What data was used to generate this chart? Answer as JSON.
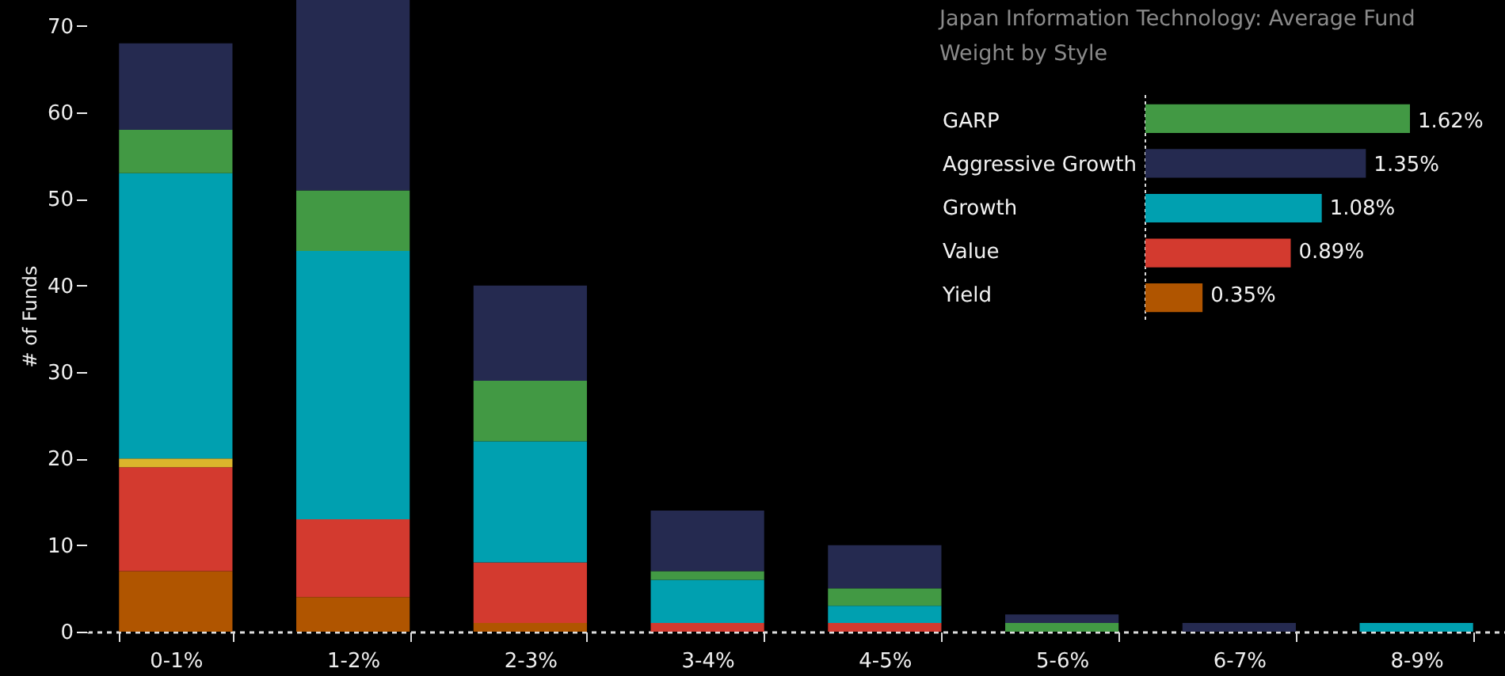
{
  "chart_data": [
    {
      "type": "bar",
      "stacked": true,
      "ylabel": "# of Funds",
      "ylim": [
        0,
        73
      ],
      "yticks": [
        0,
        10,
        20,
        30,
        40,
        50,
        60,
        70
      ],
      "grid": false,
      "categories": [
        "0-1%",
        "1-2%",
        "2-3%",
        "3-4%",
        "4-5%",
        "5-6%",
        "6-7%",
        "8-9%"
      ],
      "series": [
        {
          "color": "#b05500",
          "values": [
            7,
            4,
            1,
            0,
            0,
            0,
            0,
            0
          ]
        },
        {
          "color": "#d33a2f",
          "values": [
            12,
            9,
            7,
            1,
            1,
            0,
            0,
            0
          ]
        },
        {
          "color": "#dbb52c",
          "values": [
            1,
            0,
            0,
            0,
            0,
            0,
            0,
            0
          ]
        },
        {
          "color": "#00a0b0",
          "values": [
            33,
            31,
            14,
            5,
            2,
            0,
            0,
            1
          ]
        },
        {
          "color": "#429944",
          "values": [
            5,
            7,
            7,
            1,
            2,
            1,
            0,
            0
          ]
        },
        {
          "color": "#252a50",
          "values": [
            10,
            22,
            11,
            7,
            5,
            1,
            1,
            0
          ]
        }
      ]
    },
    {
      "type": "bar",
      "orientation": "horizontal",
      "title": "Japan Information Technology: Average Fund Weight by Style",
      "categories": [
        "GARP",
        "Aggressive Growth",
        "Growth",
        "Value",
        "Yield"
      ],
      "values": [
        1.62,
        1.35,
        1.08,
        0.89,
        0.35
      ],
      "colors": [
        "#429944",
        "#252a50",
        "#00a0b0",
        "#d33a2f",
        "#b05500"
      ],
      "value_labels": [
        "1.62%",
        "1.35%",
        "1.08%",
        "0.89%",
        "0.35%"
      ]
    }
  ]
}
